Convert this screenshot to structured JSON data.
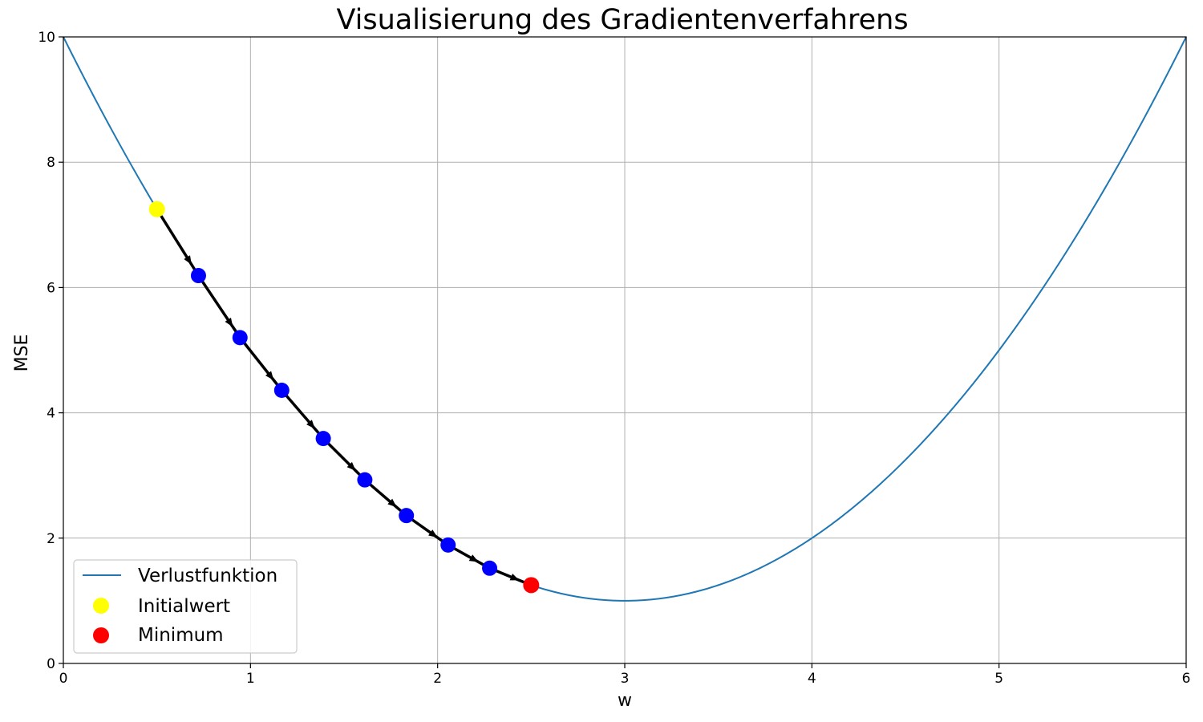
{
  "chart_data": {
    "type": "line",
    "title": "Visualisierung des Gradientenverfahrens",
    "xlabel": "w",
    "ylabel": "MSE",
    "xlim": [
      0,
      6
    ],
    "ylim": [
      0,
      10
    ],
    "xticks": [
      0,
      1,
      2,
      3,
      4,
      5,
      6
    ],
    "yticks": [
      0,
      2,
      4,
      6,
      8,
      10
    ],
    "grid": true,
    "legend_position": "lower-left",
    "series": [
      {
        "name": "Verlustfunktion",
        "kind": "line",
        "color": "#1f77b4",
        "function": "(w - 3)^2 + 1",
        "x": [
          0,
          0.5,
          1,
          1.5,
          2,
          2.5,
          3,
          3.5,
          4,
          4.5,
          5,
          5.5,
          6
        ],
        "y": [
          10,
          7.25,
          5,
          3.25,
          2,
          1.25,
          1,
          1.25,
          2,
          3.25,
          5,
          7.25,
          10
        ]
      },
      {
        "name": "Initialwert",
        "kind": "scatter",
        "color": "#ffff00",
        "x": [
          0.5
        ],
        "y": [
          7.25
        ]
      },
      {
        "name": "Minimum",
        "kind": "scatter",
        "color": "#ff0000",
        "x": [
          2.5
        ],
        "y": [
          1.25
        ]
      }
    ],
    "steps": {
      "color": "#0000ff",
      "arrow_color": "#000000",
      "x": [
        0.722,
        0.944,
        1.167,
        1.389,
        1.611,
        1.833,
        2.056,
        2.278
      ],
      "y": [
        6.19,
        5.2,
        4.36,
        3.59,
        2.93,
        2.36,
        1.89,
        1.52
      ]
    }
  }
}
